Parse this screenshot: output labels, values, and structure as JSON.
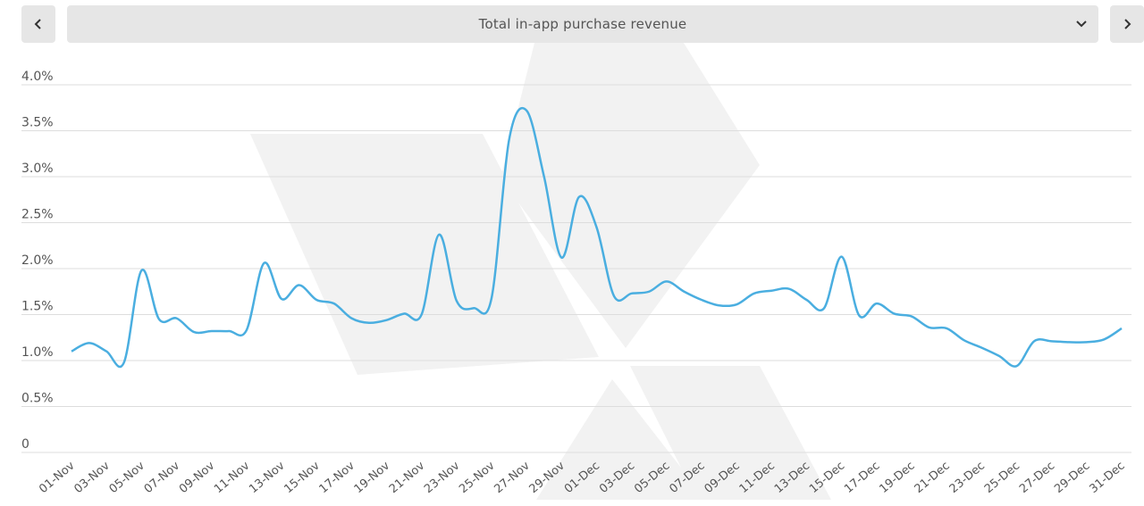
{
  "header": {
    "metric_selector_label": "Total in-app purchase revenue",
    "prev_icon": "chevron-left-icon",
    "next_icon": "chevron-right-icon",
    "dropdown_icon": "chevron-down-icon"
  },
  "colors": {
    "line": "#4aaee0",
    "grid": "#dddddd",
    "button_bg": "#e6e6e6",
    "text": "#555555"
  },
  "chart_data": {
    "type": "line",
    "title": "",
    "xlabel": "",
    "ylabel": "",
    "ylim": [
      0,
      4.0
    ],
    "y_ticks": [
      {
        "value": 0,
        "label": "0"
      },
      {
        "value": 0.5,
        "label": "0.5%"
      },
      {
        "value": 1.0,
        "label": "1.0%"
      },
      {
        "value": 1.5,
        "label": "1.5%"
      },
      {
        "value": 2.0,
        "label": "2.0%"
      },
      {
        "value": 2.5,
        "label": "2.5%"
      },
      {
        "value": 3.0,
        "label": "3.0%"
      },
      {
        "value": 3.5,
        "label": "3.5%"
      },
      {
        "value": 4.0,
        "label": "4.0%"
      }
    ],
    "grid": true,
    "x": [
      "01-Nov",
      "02-Nov",
      "03-Nov",
      "04-Nov",
      "05-Nov",
      "06-Nov",
      "07-Nov",
      "08-Nov",
      "09-Nov",
      "10-Nov",
      "11-Nov",
      "12-Nov",
      "13-Nov",
      "14-Nov",
      "15-Nov",
      "16-Nov",
      "17-Nov",
      "18-Nov",
      "19-Nov",
      "20-Nov",
      "21-Nov",
      "22-Nov",
      "23-Nov",
      "24-Nov",
      "25-Nov",
      "26-Nov",
      "27-Nov",
      "28-Nov",
      "29-Nov",
      "30-Nov",
      "01-Dec",
      "02-Dec",
      "03-Dec",
      "04-Dec",
      "05-Dec",
      "06-Dec",
      "07-Dec",
      "08-Dec",
      "09-Dec",
      "10-Dec",
      "11-Dec",
      "12-Dec",
      "13-Dec",
      "14-Dec",
      "15-Dec",
      "16-Dec",
      "17-Dec",
      "18-Dec",
      "19-Dec",
      "20-Dec",
      "21-Dec",
      "22-Dec",
      "23-Dec",
      "24-Dec",
      "25-Dec",
      "26-Dec",
      "27-Dec",
      "28-Dec",
      "29-Dec",
      "30-Dec",
      "31-Dec"
    ],
    "x_tick_labels": [
      "01-Nov",
      "03-Nov",
      "05-Nov",
      "07-Nov",
      "09-Nov",
      "11-Nov",
      "13-Nov",
      "15-Nov",
      "17-Nov",
      "19-Nov",
      "21-Nov",
      "23-Nov",
      "25-Nov",
      "27-Nov",
      "29-Nov",
      "01-Dec",
      "03-Dec",
      "05-Dec",
      "07-Dec",
      "09-Dec",
      "11-Dec",
      "13-Dec",
      "15-Dec",
      "17-Dec",
      "19-Dec",
      "21-Dec",
      "23-Dec",
      "25-Dec",
      "27-Dec",
      "29-Dec",
      "31-Dec"
    ],
    "series": [
      {
        "values": [
          1.1,
          1.19,
          1.1,
          0.98,
          1.98,
          1.45,
          1.46,
          1.31,
          1.32,
          1.32,
          1.33,
          2.06,
          1.67,
          1.82,
          1.66,
          1.62,
          1.46,
          1.41,
          1.44,
          1.51,
          1.5,
          2.37,
          1.65,
          1.57,
          1.68,
          3.4,
          3.72,
          3.0,
          2.12,
          2.78,
          2.45,
          1.7,
          1.73,
          1.75,
          1.86,
          1.75,
          1.66,
          1.6,
          1.61,
          1.73,
          1.76,
          1.78,
          1.66,
          1.57,
          2.13,
          1.49,
          1.62,
          1.51,
          1.48,
          1.36,
          1.35,
          1.22,
          1.14,
          1.05,
          0.94,
          1.21,
          1.21,
          1.2,
          1.2,
          1.23,
          1.35
        ]
      }
    ]
  }
}
